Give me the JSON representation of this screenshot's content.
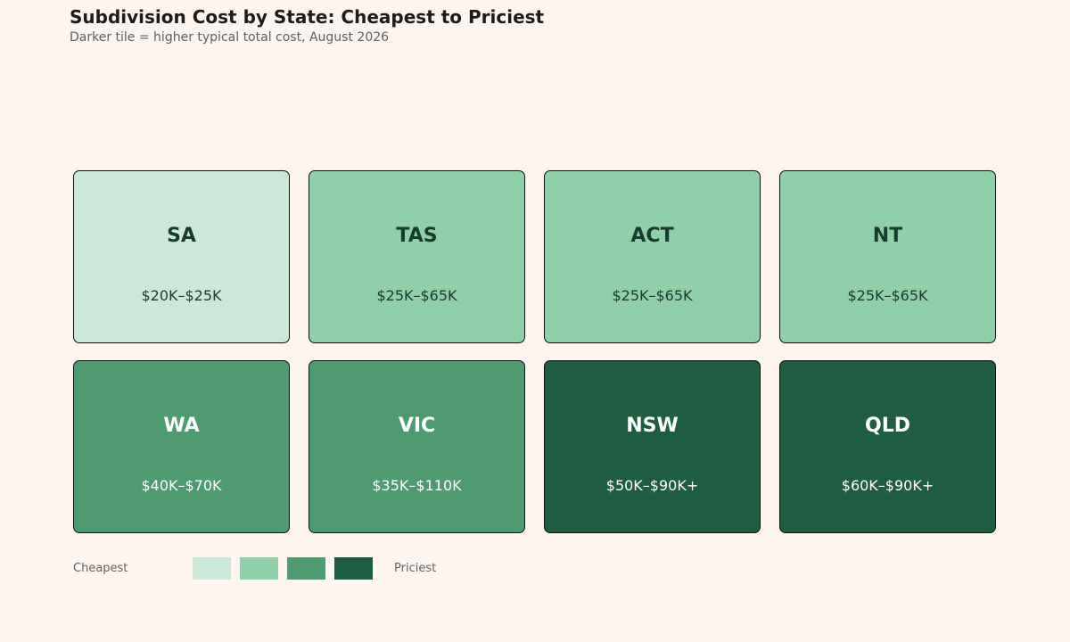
{
  "title": "Subdivision Cost by State: Cheapest to Priciest",
  "subtitle": "Darker tile = higher typical total cost, August 2026",
  "chart_data": {
    "type": "heatmap",
    "title": "Subdivision Cost by State: Cheapest to Priciest",
    "subtitle": "Darker tile = higher typical total cost, August 2026",
    "tiles": [
      {
        "state": "SA",
        "range": "$20K–$25K",
        "level": 1
      },
      {
        "state": "TAS",
        "range": "$25K–$65K",
        "level": 2
      },
      {
        "state": "ACT",
        "range": "$25K–$65K",
        "level": 2
      },
      {
        "state": "NT",
        "range": "$25K–$65K",
        "level": 2
      },
      {
        "state": "WA",
        "range": "$40K–$70K",
        "level": 3
      },
      {
        "state": "VIC",
        "range": "$35K–$110K",
        "level": 3
      },
      {
        "state": "NSW",
        "range": "$50K–$90K+",
        "level": 4
      },
      {
        "state": "QLD",
        "range": "$60K–$90K+",
        "level": 4
      }
    ],
    "level_colors": [
      "#cde8da",
      "#91cfaa",
      "#4f9a73",
      "#1f5c42"
    ],
    "legend": {
      "low_label": "Cheapest",
      "high_label": "Priciest"
    }
  }
}
